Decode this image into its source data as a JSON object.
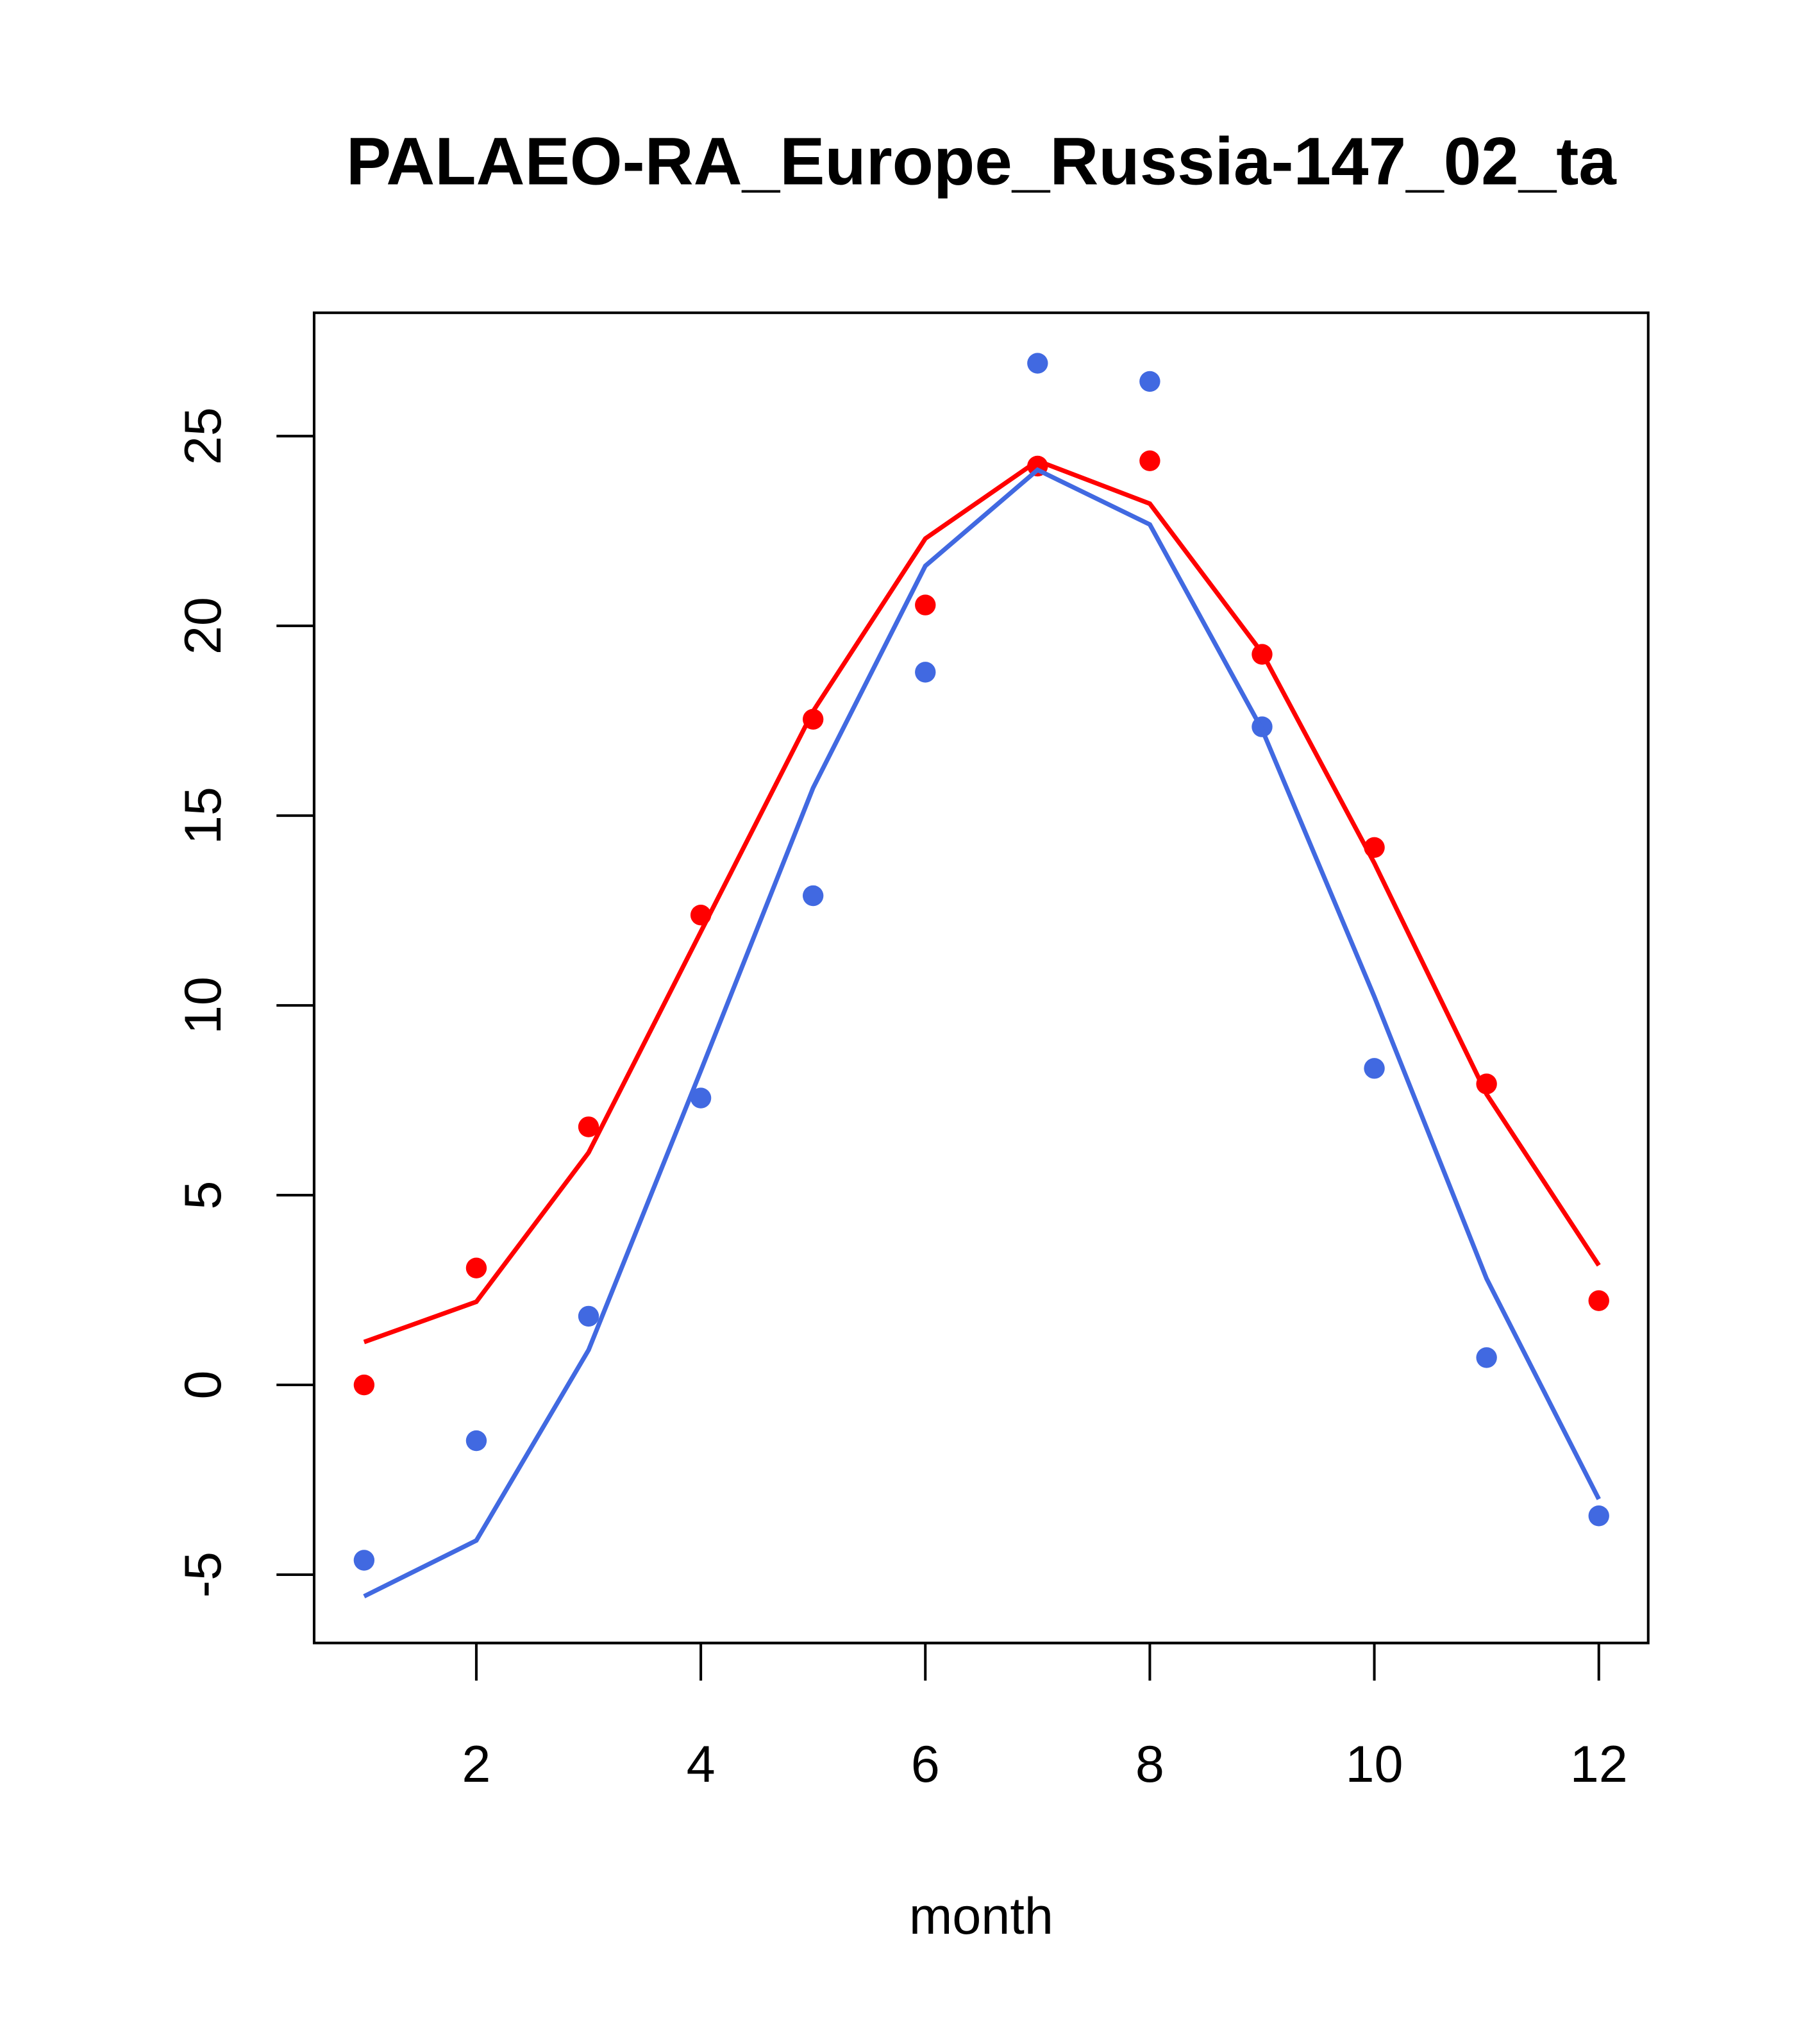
{
  "chart_data": {
    "type": "line",
    "title": "PALAEO-RA_Europe_Russia-147_02_ta",
    "xlabel": "month",
    "ylabel": "",
    "xlim": [
      0.555,
      12.44
    ],
    "ylim": [
      -6.8,
      28.25
    ],
    "xticks": [
      2,
      4,
      6,
      8,
      10,
      12
    ],
    "yticks": [
      -5,
      0,
      5,
      10,
      15,
      20,
      25
    ],
    "grid": false,
    "x": [
      1,
      2,
      3,
      4,
      5,
      6,
      7,
      8,
      9,
      10,
      11,
      12
    ],
    "series": [
      {
        "name": "red points",
        "kind": "points",
        "color": "#ff0000",
        "values": [
          0.0,
          3.08,
          6.8,
          12.38,
          17.54,
          20.55,
          24.21,
          24.35,
          19.25,
          14.16,
          7.93,
          2.22
        ]
      },
      {
        "name": "red line",
        "kind": "line",
        "color": "#ff0000",
        "values": [
          1.13,
          2.19,
          6.12,
          11.94,
          17.75,
          22.3,
          24.35,
          23.22,
          19.29,
          13.75,
          7.66,
          3.15
        ]
      },
      {
        "name": "blue points",
        "kind": "points",
        "color": "#4169e1",
        "values": [
          -4.62,
          -1.47,
          1.81,
          7.56,
          12.89,
          18.78,
          26.92,
          26.44,
          17.34,
          8.34,
          0.72,
          -3.45
        ]
      },
      {
        "name": "blue line",
        "kind": "line",
        "color": "#4169e1",
        "values": [
          -5.57,
          -4.1,
          0.92,
          8.28,
          15.73,
          21.58,
          24.11,
          22.67,
          17.27,
          10.23,
          2.8,
          -3.01
        ]
      }
    ]
  }
}
